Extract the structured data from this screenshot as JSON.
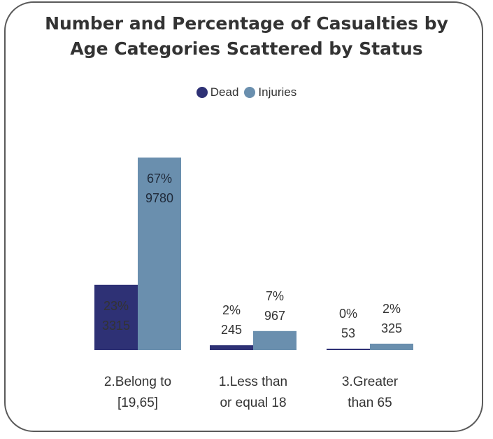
{
  "chart_data": {
    "type": "bar",
    "title_line1": "Number and Percentage of Casualties by",
    "title_line2": "Age Categories Scattered by Status",
    "categories": [
      [
        "2.Belong to",
        "[19,65]"
      ],
      [
        "1.Less than",
        "or equal 18"
      ],
      [
        "3.Greater",
        "than 65"
      ]
    ],
    "series": [
      {
        "name": "Dead",
        "color": "#2e3175",
        "values": [
          3315,
          245,
          53
        ],
        "percent": [
          "23%",
          "2%",
          "0%"
        ]
      },
      {
        "name": "Injuries",
        "color": "#6a8fae",
        "values": [
          9780,
          967,
          325
        ],
        "percent": [
          "67%",
          "7%",
          "2%"
        ]
      }
    ],
    "legend_position": "top-center",
    "grid": false
  }
}
